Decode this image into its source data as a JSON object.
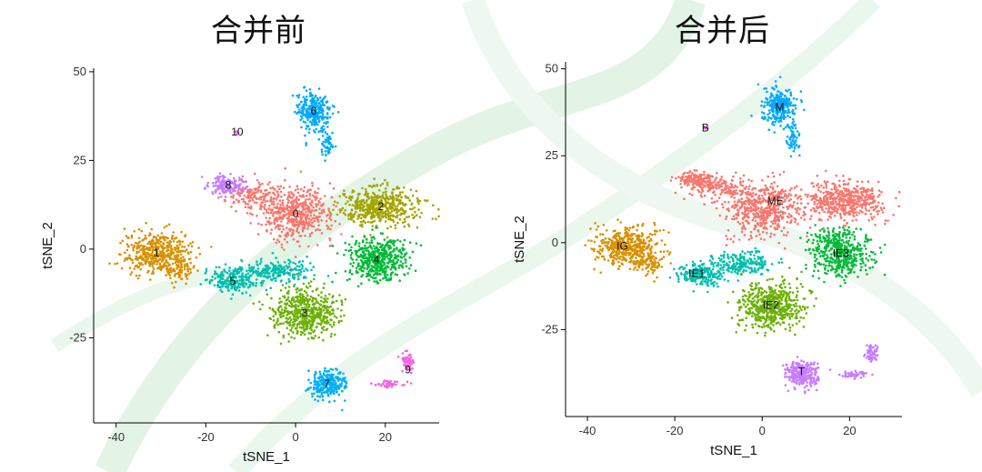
{
  "titles": {
    "left": "合并前",
    "right": "合并后"
  },
  "colors": {
    "c0": "#F8766D",
    "c1": "#D89000",
    "c2": "#A3A500",
    "c3": "#6BB100",
    "c4": "#00BA38",
    "c5": "#00BFAF",
    "c6": "#00A9FF",
    "c7": "#00B0F6",
    "c8": "#C77CFF",
    "c9": "#F564E3",
    "c10": "#E76BF3",
    "background_decor": "#e6f5ea"
  },
  "chart_data": [
    {
      "type": "scatter",
      "title": "合并前",
      "xlabel": "tSNE_1",
      "ylabel": "tSNE_2",
      "xlim": [
        -45,
        32
      ],
      "ylim": [
        -49,
        51
      ],
      "xticks": [
        -40,
        -20,
        0,
        20
      ],
      "yticks": [
        -25,
        0,
        25,
        50
      ],
      "grid": false,
      "legend": "none",
      "clusters": [
        {
          "label": "0",
          "x": 0,
          "y": 10,
          "color_key": "c0"
        },
        {
          "label": "1",
          "x": -31,
          "y": -1,
          "color_key": "c1"
        },
        {
          "label": "2",
          "x": 19,
          "y": 12,
          "color_key": "c2"
        },
        {
          "label": "3",
          "x": 2,
          "y": -18,
          "color_key": "c3"
        },
        {
          "label": "4",
          "x": 18,
          "y": -3,
          "color_key": "c4"
        },
        {
          "label": "5",
          "x": -14,
          "y": -9,
          "color_key": "c5"
        },
        {
          "label": "6",
          "x": 4,
          "y": 39,
          "color_key": "c6"
        },
        {
          "label": "7",
          "x": 7,
          "y": -38,
          "color_key": "c7"
        },
        {
          "label": "8",
          "x": -15,
          "y": 18,
          "color_key": "c8"
        },
        {
          "label": "9",
          "x": 25,
          "y": -34,
          "color_key": "c9"
        },
        {
          "label": "10",
          "x": -13,
          "y": 33,
          "color_key": "c10"
        }
      ]
    },
    {
      "type": "scatter",
      "title": "合并后",
      "xlabel": "tSNE_1",
      "ylabel": "tSNE_2",
      "xlim": [
        -45,
        32
      ],
      "ylim": [
        -50,
        52
      ],
      "xticks": [
        -40,
        -20,
        0,
        20
      ],
      "yticks": [
        -25,
        0,
        25,
        50
      ],
      "grid": false,
      "legend": "none",
      "clusters": [
        {
          "label": "B",
          "x": -13,
          "y": 33,
          "color_key": "c10"
        },
        {
          "label": "IE1",
          "x": -15,
          "y": -9,
          "color_key": "c5"
        },
        {
          "label": "IE2",
          "x": 2,
          "y": -18,
          "color_key": "c3"
        },
        {
          "label": "IE3",
          "x": 18,
          "y": -3,
          "color_key": "c4"
        },
        {
          "label": "IG",
          "x": -32,
          "y": -1,
          "color_key": "c1"
        },
        {
          "label": "M",
          "x": 4,
          "y": 39,
          "color_key": "c6"
        },
        {
          "label": "ME",
          "x": 3,
          "y": 12,
          "color_key": "c0"
        },
        {
          "label": "T",
          "x": 9,
          "y": -37,
          "color_key": "c8"
        }
      ]
    }
  ]
}
